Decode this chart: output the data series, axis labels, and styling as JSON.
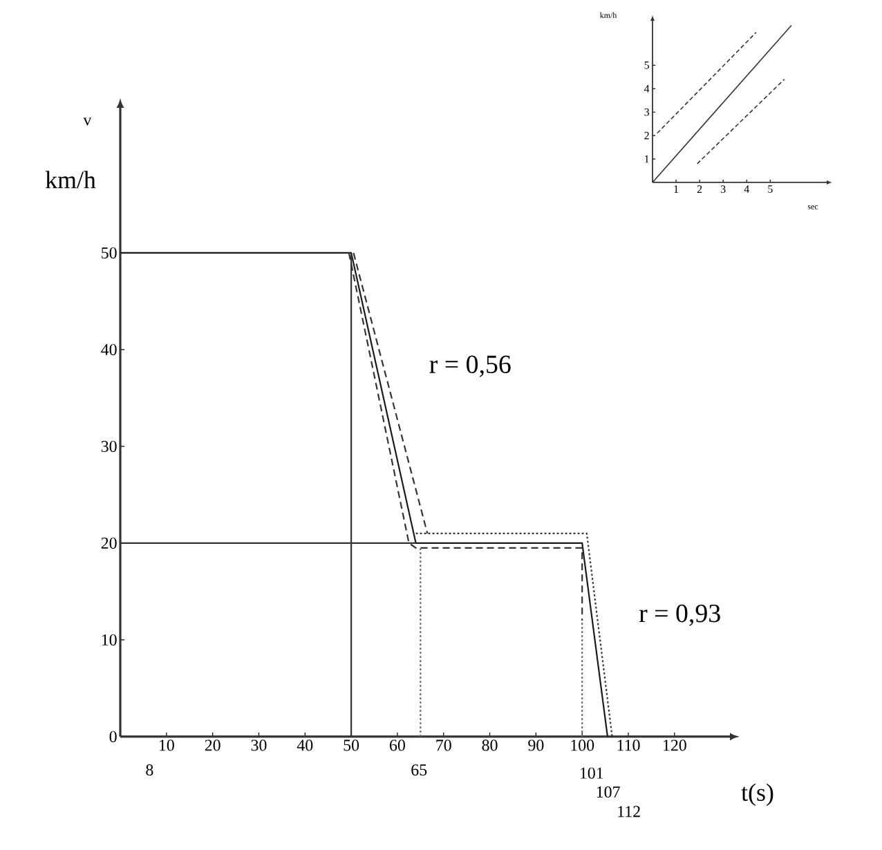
{
  "chart_data": [
    {
      "type": "line",
      "xlabel": "t(s)",
      "ylabel": "km/h",
      "annotations": [
        "v",
        "r = 0,56",
        "r = 0,93",
        "8",
        "65",
        "101",
        "107",
        "112"
      ],
      "xlim": [
        0,
        132
      ],
      "ylim": [
        0,
        65
      ],
      "xticks": [
        10,
        20,
        30,
        40,
        50,
        60,
        70,
        80,
        90,
        100,
        110,
        120
      ],
      "yticks": [
        0,
        10,
        20,
        30,
        40,
        50
      ],
      "series": [
        {
          "color": "#1a1a1a",
          "line_style": "solid",
          "x": [
            0,
            50,
            64,
            100,
            105.5
          ],
          "values": [
            50,
            50,
            20,
            20,
            0
          ]
        },
        {
          "color": "#333333",
          "line_style": "dashed",
          "x": [
            49.5,
            62.5,
            64,
            100,
            100
          ],
          "values": [
            50,
            20,
            19.5,
            19.5,
            12
          ]
        },
        {
          "color": "#333333",
          "line_style": "dashed",
          "x": [
            50.5,
            66.5
          ],
          "values": [
            50,
            21
          ]
        },
        {
          "color": "#333333",
          "line_style": "dotted",
          "x": [
            64,
            101,
            106.5
          ],
          "values": [
            21,
            21,
            0
          ]
        },
        {
          "color": "#333333",
          "line_style": "solid",
          "x": [
            50,
            50
          ],
          "values": [
            0,
            50
          ]
        },
        {
          "color": "#333333",
          "line_style": "solid",
          "x": [
            0,
            64
          ],
          "values": [
            20,
            20
          ]
        },
        {
          "color": "#666666",
          "line_style": "dotted",
          "x": [
            65,
            65
          ],
          "values": [
            0,
            19.5
          ]
        },
        {
          "color": "#666666",
          "line_style": "dotted",
          "x": [
            100,
            100
          ],
          "values": [
            0,
            12
          ]
        }
      ]
    },
    {
      "type": "line",
      "xlabel": "sec",
      "ylabel": "km/h",
      "xlim": [
        0,
        7.4
      ],
      "ylim": [
        0,
        6.9
      ],
      "xticks": [
        1,
        2,
        3,
        4,
        5
      ],
      "yticks": [
        1,
        2,
        3,
        4,
        5
      ],
      "series": [
        {
          "color": "#333333",
          "line_style": "solid",
          "x": [
            0,
            5.9
          ],
          "values": [
            0,
            6.7
          ]
        },
        {
          "color": "#333333",
          "line_style": "dashed",
          "x": [
            0.2,
            4.4
          ],
          "values": [
            2.1,
            6.4
          ]
        },
        {
          "color": "#333333",
          "line_style": "dashed",
          "x": [
            1.9,
            5.6
          ],
          "values": [
            0.8,
            4.4
          ]
        }
      ]
    }
  ]
}
